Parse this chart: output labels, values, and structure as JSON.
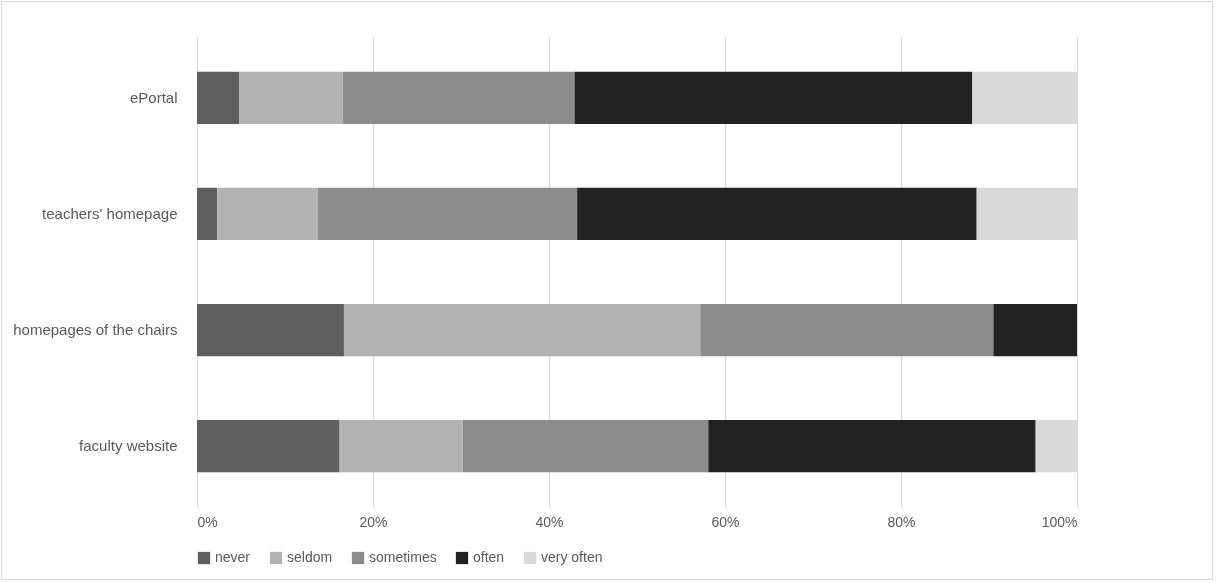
{
  "chart_data": {
    "type": "bar",
    "orientation": "horizontal",
    "stacked": true,
    "categories": [
      "ePortal",
      "teachers' homepage",
      "homepages of the chairs",
      "faculty website"
    ],
    "series": [
      {
        "name": "never",
        "color": "#5f5f5f",
        "values": [
          4.8,
          2.3,
          16.7,
          16.2
        ]
      },
      {
        "name": "seldom",
        "color": "#b2b2b2",
        "values": [
          11.8,
          11.4,
          40.5,
          14.0
        ]
      },
      {
        "name": "sometimes",
        "color": "#8c8c8c",
        "values": [
          26.3,
          29.5,
          33.3,
          27.9
        ]
      },
      {
        "name": "often",
        "color": "#222222",
        "values": [
          45.2,
          45.4,
          9.5,
          37.2
        ]
      },
      {
        "name": "very often",
        "color": "#d9d9d9",
        "values": [
          11.9,
          11.4,
          0,
          4.7
        ]
      }
    ],
    "xlim": [
      0,
      100
    ],
    "xticks": [
      {
        "value": 0,
        "label": "0%"
      },
      {
        "value": 20,
        "label": "20%"
      },
      {
        "value": 40,
        "label": "40%"
      },
      {
        "value": 60,
        "label": "60%"
      },
      {
        "value": 80,
        "label": "80%"
      },
      {
        "value": 100,
        "label": "100%"
      }
    ],
    "grid": "x",
    "legend": "bottom"
  }
}
